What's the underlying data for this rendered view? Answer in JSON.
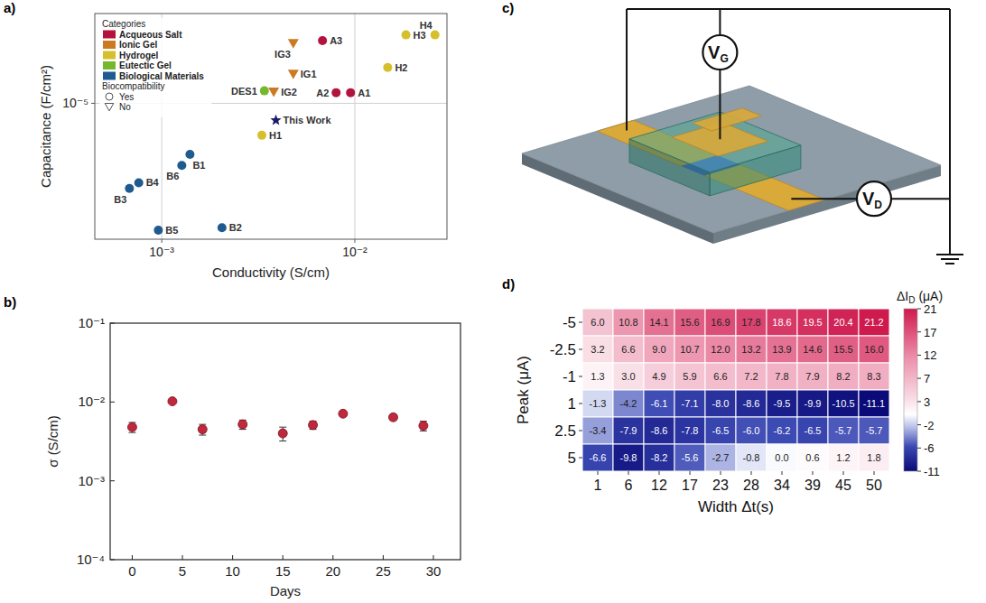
{
  "chart_data": [
    {
      "panel": "a)",
      "type": "scatter",
      "x_label": "Conductivity (S/cm)",
      "y_label": "Capacitance (F/cm²)",
      "log": true,
      "grid": true,
      "legend": "upper left",
      "legend_title": "Categories",
      "marker_legend": {
        "title": "Biocompatibility",
        "entries": [
          {
            "label": "Yes",
            "marker": "circle"
          },
          {
            "label": "No",
            "marker": "triangle"
          }
        ]
      },
      "xlim": [
        0.00045,
        0.03
      ],
      "ylim": [
        1.5e-06,
        3.5e-05
      ],
      "xticks": [
        {
          "value": 0.001,
          "label": "10⁻³"
        },
        {
          "value": 0.01,
          "label": "10⁻²"
        }
      ],
      "yticks": [
        {
          "value": 1e-05,
          "label": "10⁻⁵"
        }
      ],
      "series": [
        {
          "name": "Acqueous Salt",
          "color": "#b3123c",
          "marker": "circle",
          "x": [
            0.0095,
            0.008,
            0.0068
          ],
          "values": [
            1.16e-05,
            1.16e-05,
            2.4e-05
          ],
          "labels": [
            "A1",
            "A2",
            "A3"
          ]
        },
        {
          "name": "Ionic Gel",
          "color": "#cc7a22",
          "marker": "triangle",
          "x": [
            0.0048,
            0.0038,
            0.0048
          ],
          "values": [
            1.5e-05,
            1.17e-05,
            2.3e-05
          ],
          "labels": [
            "IG1",
            "IG2",
            "IG3"
          ]
        },
        {
          "name": "Hydrogel",
          "color": "#d6bf2c",
          "marker": "circle",
          "x": [
            0.0033,
            0.0148,
            0.0184,
            0.026
          ],
          "values": [
            6.4e-06,
            1.65e-05,
            2.6e-05,
            2.6e-05
          ],
          "labels": [
            "H1",
            "H2",
            "H3",
            "H4"
          ]
        },
        {
          "name": "Eutectic Gel",
          "color": "#74b92d",
          "marker": "circle",
          "x": [
            0.0034
          ],
          "values": [
            1.19e-05
          ],
          "labels": [
            "DES1"
          ]
        },
        {
          "name": "Biological Materials",
          "color": "#1f5b8e",
          "marker": "circle",
          "x": [
            0.0014,
            0.00205,
            0.00068,
            0.00076,
            0.00096,
            0.00127
          ],
          "values": [
            4.9e-06,
            1.76e-06,
            3.05e-06,
            3.3e-06,
            1.7e-06,
            4.2e-06
          ],
          "labels": [
            "B1",
            "B2",
            "B3",
            "B4",
            "B5",
            "B6"
          ]
        },
        {
          "color": "#1c1c6b",
          "marker": "star",
          "x": [
            0.0039
          ],
          "values": [
            7.9e-06
          ],
          "labels": [
            "This Work"
          ]
        }
      ]
    },
    {
      "panel": "b)",
      "type": "scatter",
      "x_label": "Days",
      "y_label": "σ (S/cm)",
      "log": "y",
      "grid": false,
      "color": "#c0283c",
      "marker": "circle",
      "x": [
        0,
        4,
        7,
        11,
        15,
        18,
        21,
        26,
        29
      ],
      "values": [
        0.0048,
        0.0102,
        0.0045,
        0.0052,
        0.004,
        0.0051,
        0.0071,
        0.0064,
        0.005
      ],
      "errors": [
        0.0007,
        0.0005,
        0.0007,
        0.0007,
        0.0008,
        0.0006,
        0.0005,
        0.0005,
        0.0007
      ],
      "xlim": [
        -2.2,
        32.7
      ],
      "xticks": [
        0,
        5,
        10,
        15,
        20,
        25,
        30
      ],
      "ylim": [
        0.0001,
        0.1
      ],
      "yticks": [
        {
          "value": 0.0001,
          "label": "10⁻⁴"
        },
        {
          "value": 0.001,
          "label": "10⁻³"
        },
        {
          "value": 0.01,
          "label": "10⁻²"
        },
        {
          "value": 0.1,
          "label": "10⁻¹"
        }
      ]
    },
    {
      "panel": "d)",
      "type": "heatmap",
      "x_label": "Width Δt(s)",
      "y_label": "Peak (μA)",
      "data_labels": true,
      "categories": [
        1,
        6,
        12,
        17,
        23,
        28,
        34,
        39,
        45,
        50
      ],
      "rows": [
        -5,
        -2.5,
        -1,
        1,
        2.5,
        5
      ],
      "cells": [
        [
          6.0,
          10.8,
          14.1,
          15.6,
          16.9,
          17.8,
          18.6,
          19.5,
          20.4,
          21.2
        ],
        [
          3.2,
          6.6,
          9.0,
          10.7,
          12.0,
          13.2,
          13.9,
          14.6,
          15.5,
          16.0
        ],
        [
          1.3,
          3.0,
          4.9,
          5.9,
          6.6,
          7.2,
          7.8,
          7.9,
          8.2,
          8.3
        ],
        [
          -1.3,
          -4.2,
          -6.1,
          -7.1,
          -8.0,
          -8.6,
          -9.5,
          -9.9,
          -10.5,
          -11.1
        ],
        [
          -3.4,
          -7.9,
          -8.6,
          -7.8,
          -6.5,
          -6.0,
          -6.2,
          -6.5,
          -5.7,
          -5.7
        ],
        [
          -6.6,
          -9.8,
          -8.2,
          -5.6,
          -2.7,
          -0.8,
          0.0,
          0.6,
          1.2,
          1.8
        ]
      ],
      "value_labels": [
        [
          "6.0",
          "10.8",
          "14.1",
          "15.6",
          "16.9",
          "17.8",
          "18.6",
          "19.5",
          "20.4",
          "21.2"
        ],
        [
          "3.2",
          "6.6",
          "9.0",
          "10.7",
          "12.0",
          "13.2",
          "13.9",
          "14.6",
          "15.5",
          "16.0"
        ],
        [
          "1.3",
          "3.0",
          "4.9",
          "5.9",
          "6.6",
          "7.2",
          "7.8",
          "7.9",
          "8.2",
          "8.3"
        ],
        [
          "-1.3",
          "-4.2",
          "-6.1",
          "-7.1",
          "-8.0",
          "-8.6",
          "-9.5",
          "-9.9",
          "-10.5",
          "-11.1"
        ],
        [
          "-3.4",
          "-7.9",
          "-8.6",
          "-7.8",
          "-6.5",
          "-6.0",
          "-6.2",
          "-6.5",
          "-5.7",
          "-5.7"
        ],
        [
          "-6.6",
          "-9.8",
          "-8.2",
          "-5.6",
          "-2.7",
          "-0.8",
          "0.0",
          "0.6",
          "1.2",
          "1.8"
        ]
      ],
      "colorbar": {
        "title": {
          "main": "ΔI",
          "sub": "D",
          "unit": "(μA)"
        },
        "lim": [
          -11.1,
          21.2
        ],
        "ticks": [
          {
            "value": -11.1,
            "label": "-11"
          },
          {
            "value": -6.49,
            "label": "-6"
          },
          {
            "value": -1.87,
            "label": "-2"
          },
          {
            "value": 2.74,
            "label": "3"
          },
          {
            "value": 7.36,
            "label": "7"
          },
          {
            "value": 11.97,
            "label": "12"
          },
          {
            "value": 16.59,
            "label": "17"
          },
          {
            "value": 21.2,
            "label": "21"
          }
        ]
      }
    }
  ],
  "diagram": {
    "panel": "c)",
    "gate_source": {
      "symbol": "V",
      "subscript": "G"
    },
    "drain_source": {
      "symbol": "V",
      "subscript": "D"
    }
  }
}
